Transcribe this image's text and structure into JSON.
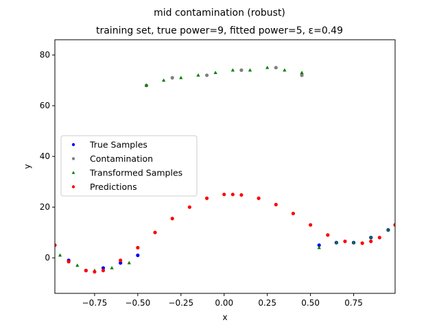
{
  "chart_data": {
    "type": "scatter",
    "title": "mid contamination (robust)",
    "subtitle": "training set, true power=9, fitted power=5, ε=0.49",
    "xlabel": "x",
    "ylabel": "y",
    "xlim": [
      -0.98,
      0.99
    ],
    "ylim": [
      -14,
      86
    ],
    "xticks": [
      -0.75,
      -0.5,
      -0.25,
      0.0,
      0.25,
      0.5,
      0.75
    ],
    "xtick_labels": [
      "−0.75",
      "−0.50",
      "−0.25",
      "0.00",
      "0.25",
      "0.50",
      "0.75"
    ],
    "yticks": [
      0,
      20,
      40,
      60,
      80
    ],
    "ytick_labels": [
      "0",
      "20",
      "40",
      "60",
      "80"
    ],
    "grid": false,
    "legend_position": "center-left",
    "series": [
      {
        "name": "True Samples",
        "marker": "circle",
        "color": "#0000ff",
        "x": [
          -0.9,
          -0.8,
          -0.7,
          -0.6,
          -0.5,
          0.55,
          0.65,
          0.75,
          0.85,
          0.95
        ],
        "y": [
          -1,
          -5,
          -4,
          -2,
          1,
          5,
          6,
          6,
          8,
          11
        ]
      },
      {
        "name": "Contamination",
        "marker": "circle",
        "color": "#808080",
        "x": [
          -0.45,
          -0.3,
          -0.1,
          0.1,
          0.3,
          0.45
        ],
        "y": [
          68,
          71,
          72,
          74,
          75,
          72
        ]
      },
      {
        "name": "Transformed Samples",
        "marker": "triangle",
        "color": "#008000",
        "x": [
          -0.95,
          -0.85,
          -0.75,
          -0.65,
          -0.55,
          -0.45,
          -0.35,
          -0.25,
          -0.15,
          -0.05,
          0.05,
          0.15,
          0.25,
          0.35,
          0.45,
          0.55,
          0.65,
          0.75,
          0.85,
          0.95
        ],
        "y": [
          1,
          -3,
          -5,
          -4,
          -2,
          68,
          70,
          71,
          72,
          73,
          74,
          74,
          75,
          74,
          73,
          4,
          6,
          6,
          8,
          11
        ]
      },
      {
        "name": "Predictions",
        "marker": "circle",
        "color": "#ff0000",
        "x": [
          -0.98,
          -0.9,
          -0.8,
          -0.75,
          -0.7,
          -0.6,
          -0.5,
          -0.4,
          -0.3,
          -0.2,
          -0.1,
          0.0,
          0.05,
          0.1,
          0.2,
          0.3,
          0.4,
          0.5,
          0.6,
          0.7,
          0.8,
          0.85,
          0.9,
          0.99
        ],
        "y": [
          5.0,
          -1.5,
          -5.0,
          -5.5,
          -5.0,
          -1.0,
          4.0,
          10.0,
          15.5,
          20.0,
          23.5,
          25.0,
          25.0,
          24.8,
          23.5,
          21.0,
          17.5,
          13.0,
          9.0,
          6.5,
          5.8,
          6.5,
          8.0,
          13.0
        ]
      }
    ]
  }
}
